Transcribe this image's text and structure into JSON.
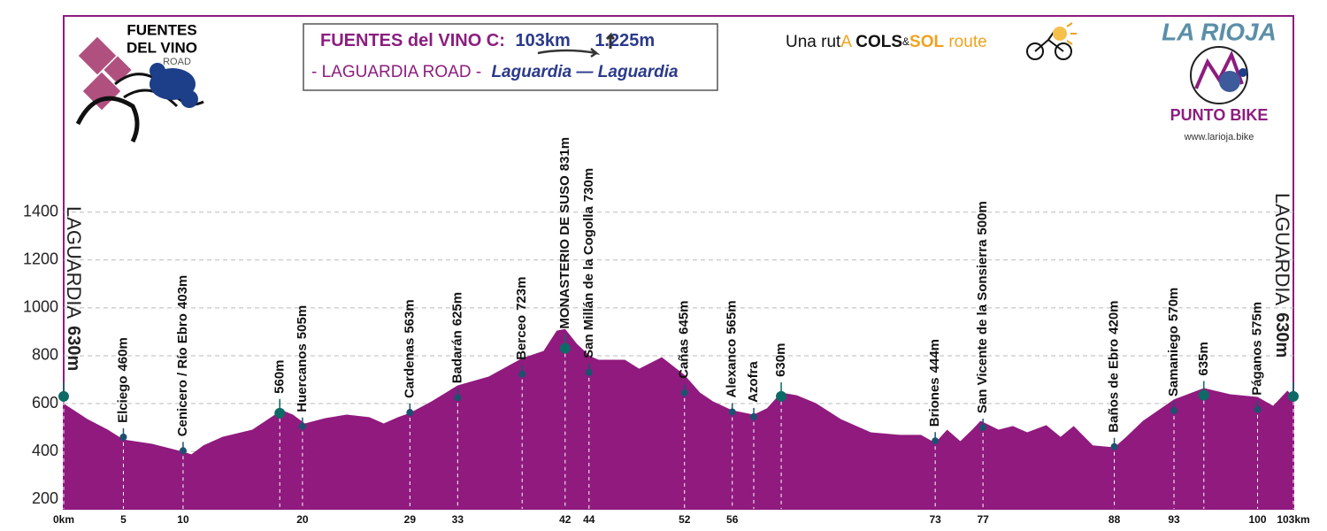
{
  "header": {
    "logo": [
      "FUENTES",
      "DEL VINO",
      "ROAD"
    ],
    "title": [
      "FUENTES del VINO C:",
      "103km",
      "1.225m"
    ],
    "subtitle": [
      "- LAGUARDIA ROAD -",
      "Laguardia — Laguardia"
    ],
    "tagline": [
      "Una rut",
      "A",
      "COLS",
      "&",
      "SOL",
      "route"
    ],
    "brand": "LA RIOJA",
    "brand_sub": "PUNTO BIKE",
    "url": "www.larioja.bike"
  },
  "chart_data": {
    "type": "area",
    "color": "#901a7e",
    "grid": true,
    "xlim": [
      0,
      103
    ],
    "ylim": [
      160,
      2220
    ],
    "yticks": [
      200,
      400,
      600,
      800,
      1000,
      1200,
      1400
    ],
    "xticks": [
      {
        "value": 0,
        "label": "0km"
      },
      5,
      10,
      20,
      29,
      33,
      42,
      44,
      52,
      56,
      73,
      77,
      88,
      93,
      100,
      {
        "value": 103,
        "label": "103km"
      }
    ],
    "x": [
      0,
      2.0,
      3.7,
      5,
      7.4,
      10,
      10.7,
      11.7,
      13.3,
      15.8,
      17.9,
      18.3,
      19.2,
      20.2,
      21.9,
      23.7,
      25.6,
      26.8,
      28.0,
      29,
      30.8,
      33,
      35.6,
      38.4,
      40.2,
      41.3,
      42,
      43.0,
      44.1,
      44.8,
      47.0,
      48.2,
      50.1,
      52,
      53.3,
      54.4,
      56,
      57.8,
      58.9,
      60.1,
      61.4,
      63.0,
      65.1,
      67.6,
      70.1,
      71.8,
      73,
      74.0,
      75.1,
      76.1,
      76.8,
      78.3,
      79.5,
      80.7,
      82.3,
      83.5,
      84.6,
      86.2,
      88,
      89.0,
      90.4,
      93,
      95.5,
      97.7,
      100,
      101.3,
      102.5,
      103
    ],
    "values": [
      600,
      535,
      491,
      450,
      432,
      399,
      388,
      425,
      461,
      491,
      561,
      572,
      554,
      517,
      539,
      554,
      543,
      517,
      543,
      561,
      609,
      676,
      713,
      790,
      820,
      905,
      912,
      849,
      798,
      783,
      783,
      746,
      794,
      720,
      646,
      609,
      572,
      554,
      580,
      646,
      635,
      602,
      535,
      480,
      469,
      469,
      436,
      491,
      443,
      491,
      528,
      491,
      506,
      480,
      510,
      461,
      506,
      425,
      417,
      461,
      528,
      617,
      665,
      639,
      628,
      591,
      654,
      628
    ],
    "waypoints": [
      {
        "place": "LAGUARDIA",
        "label": "630m",
        "km": 0,
        "elevation": 630,
        "style": "end"
      },
      {
        "place": "Elciego",
        "label": "460m",
        "km": 5,
        "elevation": 460,
        "style": "town"
      },
      {
        "place": "Cenicero / Río Ebro",
        "label": "403m",
        "km": 10,
        "elevation": 403,
        "style": "town"
      },
      {
        "label": "560m",
        "km": 18.1,
        "elevation": 560,
        "style": "peak"
      },
      {
        "place": "Huercanos",
        "label": "505m",
        "km": 20,
        "elevation": 505,
        "style": "town"
      },
      {
        "place": "Cardenas",
        "label": "563m",
        "km": 29,
        "elevation": 563,
        "style": "town"
      },
      {
        "place": "Badarán",
        "label": "625m",
        "km": 33,
        "elevation": 625,
        "style": "town"
      },
      {
        "place": "Berceo",
        "label": "723m",
        "km": 38.4,
        "elevation": 723,
        "style": "town"
      },
      {
        "place": "MONASTERIO DE SUSO",
        "label": "831m",
        "km": 42,
        "elevation": 831,
        "style": "peak"
      },
      {
        "place": "San Millán de la Cogolla",
        "label": "730m",
        "km": 44,
        "elevation": 730,
        "style": "town"
      },
      {
        "place": "Cañas",
        "label": "645m",
        "km": 52,
        "elevation": 645,
        "style": "town"
      },
      {
        "place": "Alexanco",
        "label": "565m",
        "km": 56,
        "elevation": 565,
        "style": "town"
      },
      {
        "place": "Azofra",
        "km": 57.8,
        "elevation": 545,
        "style": "town"
      },
      {
        "label": "630m",
        "km": 60.1,
        "elevation": 630,
        "style": "peak"
      },
      {
        "place": "Briones",
        "label": "444m",
        "km": 73,
        "elevation": 444,
        "style": "town"
      },
      {
        "place": "San Vicente de la Sonsierra",
        "label": "500m",
        "km": 77,
        "elevation": 500,
        "style": "town"
      },
      {
        "place": "Baños de Ebro",
        "label": "420m",
        "km": 88,
        "elevation": 420,
        "style": "town"
      },
      {
        "place": "Samaniego",
        "label": "570m",
        "km": 93,
        "elevation": 570,
        "style": "town"
      },
      {
        "label": "635m",
        "km": 95.5,
        "elevation": 635,
        "style": "peak"
      },
      {
        "place": "Páganos",
        "label": "575m",
        "km": 100,
        "elevation": 575,
        "style": "town"
      },
      {
        "place": "LAGUARDIA",
        "label": "630m",
        "km": 103,
        "elevation": 630,
        "style": "end"
      }
    ]
  }
}
